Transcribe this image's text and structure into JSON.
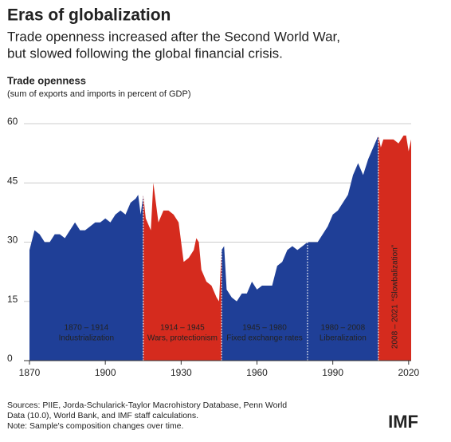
{
  "chart_data": {
    "type": "area",
    "title": "Eras of globalization",
    "subtitle": [
      "Trade openness increased after the Second World War,",
      "but slowed following the global financial crisis."
    ],
    "chart_title": "Trade openness",
    "chart_subtitle": "(sum of exports and imports in percent of GDP)",
    "x": [
      1870,
      1872,
      1874,
      1876,
      1878,
      1880,
      1882,
      1884,
      1886,
      1888,
      1890,
      1892,
      1894,
      1896,
      1898,
      1900,
      1902,
      1904,
      1906,
      1908,
      1910,
      1912,
      1913,
      1914,
      1915,
      1916,
      1918,
      1919,
      1920,
      1921,
      1923,
      1925,
      1927,
      1929,
      1931,
      1933,
      1935,
      1936,
      1937,
      1938,
      1940,
      1942,
      1944,
      1945,
      1946,
      1947,
      1948,
      1950,
      1952,
      1954,
      1956,
      1958,
      1960,
      1962,
      1964,
      1966,
      1968,
      1970,
      1972,
      1974,
      1976,
      1978,
      1980,
      1982,
      1984,
      1986,
      1988,
      1990,
      1992,
      1994,
      1996,
      1998,
      2000,
      2002,
      2004,
      2006,
      2008,
      2009,
      2010,
      2012,
      2014,
      2016,
      2018,
      2019,
      2020,
      2021
    ],
    "values": [
      28,
      33,
      32,
      30,
      30,
      32,
      32,
      31,
      33,
      35,
      33,
      33,
      34,
      35,
      35,
      36,
      35,
      37,
      38,
      37,
      40,
      41,
      42,
      37,
      42,
      36,
      33,
      45,
      40,
      35,
      38,
      38,
      37,
      35,
      25,
      26,
      28,
      31,
      30,
      23,
      20,
      19,
      16,
      15,
      28,
      29,
      18,
      16,
      15,
      17,
      17,
      20,
      18,
      19,
      19,
      19,
      24,
      25,
      28,
      29,
      28,
      29,
      30,
      30,
      30,
      32,
      34,
      37,
      38,
      40,
      42,
      47,
      50,
      47,
      51,
      54,
      57,
      54,
      56,
      56,
      56,
      55,
      57,
      57,
      53,
      56
    ],
    "eras": [
      {
        "years": "1870 – 1914",
        "name": "Industrialization",
        "start": 1870,
        "end": 1915,
        "color": "#1f3f97"
      },
      {
        "years": "1914 – 1945",
        "name": "Wars, protectionism",
        "start": 1915,
        "end": 1946,
        "color": "#d52b1e"
      },
      {
        "years": "1945 – 1980",
        "name": "Fixed exchange rates",
        "start": 1946,
        "end": 1980,
        "color": "#1f3f97"
      },
      {
        "years": "1980 – 2008",
        "name": "Liberalization",
        "start": 1980,
        "end": 2008,
        "color": "#1f3f97"
      },
      {
        "years": "2008 – 2021",
        "name": "“Slowbalization”",
        "start": 2008,
        "end": 2021,
        "color": "#d52b1e",
        "rotated": true
      }
    ],
    "xlim": [
      1870,
      2021
    ],
    "xticks": [
      1870,
      1900,
      1930,
      1960,
      1990,
      2020
    ],
    "ylim": [
      0,
      60
    ],
    "yticks": [
      0,
      15,
      30,
      45,
      60
    ],
    "grid": true,
    "notes": [
      "Sources: PIIE, Jorda-Schularick-Taylor Macrohistory Database, Penn World",
      "Data (10.0), World Bank, and IMF staff calculations.",
      "Note: Sample's composition changes over time."
    ],
    "logo": "IMF"
  }
}
